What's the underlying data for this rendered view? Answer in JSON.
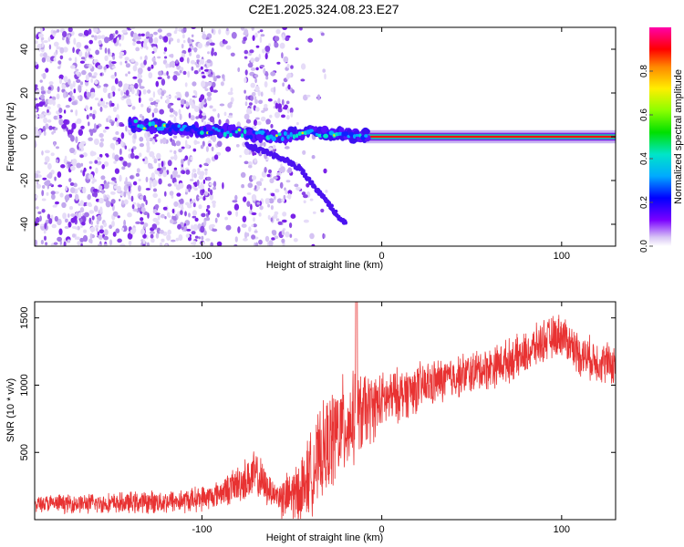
{
  "title": "C2E1.2025.324.08.23.E27",
  "chart_data": [
    {
      "type": "heatmap",
      "name": "spectrogram",
      "xlabel": "Height of straight line (km)",
      "ylabel": "Frequency (Hz)",
      "xlim": [
        -193,
        130
      ],
      "ylim": [
        -50,
        50
      ],
      "xticks": [
        -100,
        0,
        100
      ],
      "yticks": [
        -40,
        -20,
        0,
        20,
        40
      ],
      "xtick_labels": [
        "-100",
        "0",
        "100"
      ],
      "ytick_labels": [
        "-40",
        "-20",
        "0",
        "20",
        "40"
      ],
      "colorbar": {
        "label": "Normalized spectral amplitude",
        "range": [
          0,
          1
        ],
        "ticks": [
          0.0,
          0.2,
          0.4,
          0.6,
          0.8
        ],
        "tick_labels": [
          "0.0",
          "0.2",
          "0.4",
          "0.6",
          "0.8"
        ]
      },
      "features": {
        "carrier_frequency_hz": 0,
        "carrier_start_km": -10,
        "main_track": [
          [
            -140,
            6
          ],
          [
            -120,
            4
          ],
          [
            -100,
            3
          ],
          [
            -80,
            2
          ],
          [
            -60,
            0
          ],
          [
            -40,
            2
          ],
          [
            -20,
            1
          ],
          [
            -8,
            0.5
          ]
        ],
        "descending_track": [
          [
            -75,
            -4
          ],
          [
            -55,
            -10
          ],
          [
            -45,
            -15
          ],
          [
            -35,
            -25
          ],
          [
            -28,
            -32
          ],
          [
            -23,
            -38
          ],
          [
            -20,
            -40
          ]
        ],
        "noise_band_km": [
          -193,
          -93
        ],
        "noise_band_2_km": [
          -77,
          -50
        ]
      }
    },
    {
      "type": "line",
      "name": "snr",
      "xlabel": "Height of straight line (km)",
      "ylabel": "SNR (10 * v/v)",
      "xlim": [
        -193,
        130
      ],
      "ylim": [
        0,
        1620
      ],
      "xticks": [
        -100,
        0,
        100
      ],
      "yticks": [
        500,
        1000,
        1500
      ],
      "xtick_labels": [
        "-100",
        "0",
        "100"
      ],
      "ytick_labels": [
        "500",
        "1000",
        "1500"
      ],
      "color": "#e83232",
      "trend": [
        [
          -193,
          120
        ],
        [
          -150,
          120
        ],
        [
          -110,
          140
        ],
        [
          -95,
          170
        ],
        [
          -85,
          230
        ],
        [
          -75,
          300
        ],
        [
          -70,
          330
        ],
        [
          -65,
          250
        ],
        [
          -55,
          150
        ],
        [
          -45,
          220
        ],
        [
          -35,
          450
        ],
        [
          -25,
          650
        ],
        [
          -15,
          750
        ],
        [
          -10,
          800
        ],
        [
          0,
          880
        ],
        [
          20,
          980
        ],
        [
          40,
          1060
        ],
        [
          60,
          1130
        ],
        [
          80,
          1230
        ],
        [
          90,
          1330
        ],
        [
          100,
          1380
        ],
        [
          110,
          1230
        ],
        [
          120,
          1180
        ],
        [
          130,
          1150
        ]
      ],
      "spike": {
        "x": -14,
        "y": 1620
      },
      "noise_profile": [
        [
          -193,
          60
        ],
        [
          -90,
          90
        ],
        [
          -70,
          180
        ],
        [
          -60,
          90
        ],
        [
          -45,
          250
        ],
        [
          -25,
          380
        ],
        [
          -12,
          300
        ],
        [
          0,
          200
        ],
        [
          40,
          150
        ],
        [
          130,
          150
        ]
      ]
    }
  ]
}
